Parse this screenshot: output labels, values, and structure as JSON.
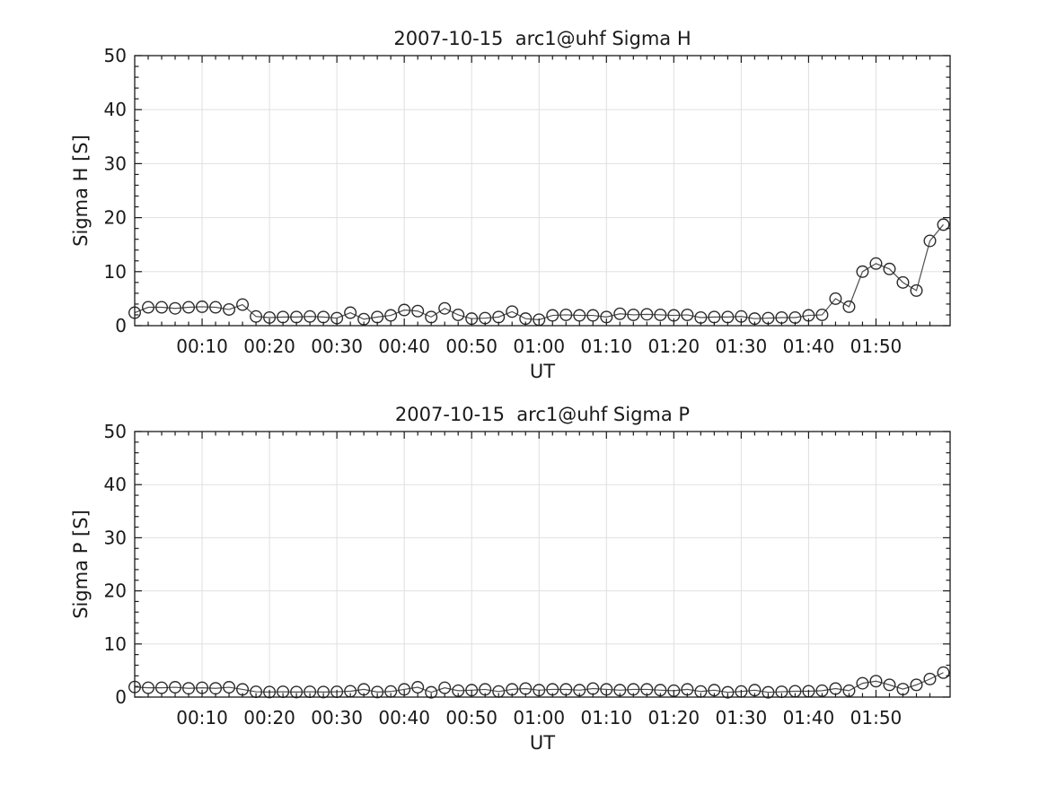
{
  "figure": {
    "date": "2007-10-15",
    "experiment": "arc1@uhf",
    "background": "#ffffff",
    "colors": {
      "axis": "#1a1a1a",
      "text": "#1a1a1a",
      "grid": "#e0e0e0",
      "line": "#4d4d4d",
      "marker": "#2b2b2b"
    }
  },
  "chart_data": [
    {
      "type": "line",
      "title": "2007-10-15  arc1@uhf Sigma H",
      "xlabel": "UT",
      "ylabel": "Sigma H [S]",
      "ylim": [
        0,
        50
      ],
      "xlim_minutes": [
        0,
        121
      ],
      "grid": true,
      "marker": "open-circle",
      "y_ticks": [
        0,
        10,
        20,
        30,
        40,
        50
      ],
      "y_minor_step": 2,
      "x_minor_step_minutes": 2,
      "x_ticks": [
        {
          "minute": 10,
          "label": "00:10"
        },
        {
          "minute": 20,
          "label": "00:20"
        },
        {
          "minute": 30,
          "label": "00:30"
        },
        {
          "minute": 40,
          "label": "00:40"
        },
        {
          "minute": 50,
          "label": "00:50"
        },
        {
          "minute": 60,
          "label": "01:00"
        },
        {
          "minute": 70,
          "label": "01:10"
        },
        {
          "minute": 80,
          "label": "01:20"
        },
        {
          "minute": 90,
          "label": "01:30"
        },
        {
          "minute": 100,
          "label": "01:40"
        },
        {
          "minute": 110,
          "label": "01:50"
        }
      ],
      "x_minutes": [
        0,
        2,
        4,
        6,
        8,
        10,
        12,
        14,
        16,
        18,
        20,
        22,
        24,
        26,
        28,
        30,
        32,
        34,
        36,
        38,
        40,
        42,
        44,
        46,
        48,
        50,
        52,
        54,
        56,
        58,
        60,
        62,
        64,
        66,
        68,
        70,
        72,
        74,
        76,
        78,
        80,
        82,
        84,
        86,
        88,
        90,
        92,
        94,
        96,
        98,
        100,
        102,
        104,
        106,
        108,
        110,
        112,
        114,
        116,
        118,
        120
      ],
      "values": [
        2.4,
        3.4,
        3.4,
        3.2,
        3.4,
        3.5,
        3.4,
        3.0,
        3.9,
        1.7,
        1.5,
        1.6,
        1.6,
        1.7,
        1.6,
        1.4,
        2.4,
        1.2,
        1.6,
        1.9,
        2.9,
        2.7,
        1.6,
        3.2,
        2.0,
        1.3,
        1.4,
        1.6,
        2.6,
        1.3,
        1.1,
        1.9,
        2.0,
        1.9,
        1.9,
        1.6,
        2.2,
        2.0,
        2.1,
        2.0,
        1.9,
        2.0,
        1.5,
        1.6,
        1.6,
        1.7,
        1.3,
        1.4,
        1.5,
        1.5,
        1.9,
        2.0,
        5.0,
        3.5,
        10.0,
        11.5,
        10.5,
        8.0,
        6.5,
        15.7,
        18.7
      ]
    },
    {
      "type": "line",
      "title": "2007-10-15  arc1@uhf Sigma P",
      "xlabel": "UT",
      "ylabel": "Sigma P [S]",
      "ylim": [
        0,
        50
      ],
      "xlim_minutes": [
        0,
        121
      ],
      "grid": true,
      "marker": "open-circle",
      "y_ticks": [
        0,
        10,
        20,
        30,
        40,
        50
      ],
      "y_minor_step": 2,
      "x_minor_step_minutes": 2,
      "x_ticks": [
        {
          "minute": 10,
          "label": "00:10"
        },
        {
          "minute": 20,
          "label": "00:20"
        },
        {
          "minute": 30,
          "label": "00:30"
        },
        {
          "minute": 40,
          "label": "00:40"
        },
        {
          "minute": 50,
          "label": "00:50"
        },
        {
          "minute": 60,
          "label": "01:00"
        },
        {
          "minute": 70,
          "label": "01:10"
        },
        {
          "minute": 80,
          "label": "01:20"
        },
        {
          "minute": 90,
          "label": "01:30"
        },
        {
          "minute": 100,
          "label": "01:40"
        },
        {
          "minute": 110,
          "label": "01:50"
        }
      ],
      "x_minutes": [
        0,
        2,
        4,
        6,
        8,
        10,
        12,
        14,
        16,
        18,
        20,
        22,
        24,
        26,
        28,
        30,
        32,
        34,
        36,
        38,
        40,
        42,
        44,
        46,
        48,
        50,
        52,
        54,
        56,
        58,
        60,
        62,
        64,
        66,
        68,
        70,
        72,
        74,
        76,
        78,
        80,
        82,
        84,
        86,
        88,
        90,
        92,
        94,
        96,
        98,
        100,
        102,
        104,
        106,
        108,
        110,
        112,
        114,
        116,
        118,
        120
      ],
      "values": [
        1.9,
        1.75,
        1.75,
        1.85,
        1.65,
        1.75,
        1.65,
        1.85,
        1.45,
        1.0,
        0.95,
        1.0,
        0.95,
        1.0,
        0.95,
        1.0,
        1.1,
        1.45,
        0.95,
        1.05,
        1.45,
        1.85,
        0.9,
        1.75,
        1.2,
        1.3,
        1.45,
        1.05,
        1.45,
        1.6,
        1.3,
        1.45,
        1.45,
        1.3,
        1.6,
        1.45,
        1.3,
        1.45,
        1.45,
        1.3,
        1.2,
        1.45,
        1.05,
        1.3,
        0.9,
        1.05,
        1.3,
        0.9,
        1.0,
        1.1,
        1.1,
        1.2,
        1.6,
        1.2,
        2.6,
        3.0,
        2.3,
        1.5,
        2.3,
        3.4,
        4.6
      ]
    }
  ]
}
